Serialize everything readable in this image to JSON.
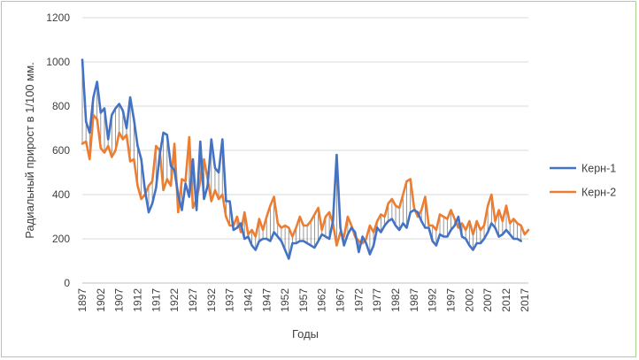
{
  "chart_data": {
    "type": "line",
    "title": "",
    "xlabel": "Годы",
    "ylabel": "Радиальный прирост в 1/100 мм.",
    "ylim": [
      0,
      1200
    ],
    "yticks": [
      0,
      200,
      400,
      600,
      800,
      1000,
      1200
    ],
    "xlim": [
      1897,
      2018
    ],
    "xticks": [
      1897,
      1902,
      1907,
      1912,
      1917,
      1922,
      1927,
      1932,
      1937,
      1942,
      1947,
      1952,
      1957,
      1962,
      1967,
      1972,
      1977,
      1982,
      1987,
      1992,
      1997,
      2002,
      2007,
      2012,
      2017
    ],
    "grid": "horizontal",
    "legend_position": "right",
    "drop_lines": true,
    "series": [
      {
        "name": "Керн-1",
        "color": "#4472c4",
        "x": [
          1897,
          1898,
          1899,
          1900,
          1901,
          1902,
          1903,
          1904,
          1905,
          1906,
          1907,
          1908,
          1909,
          1910,
          1911,
          1912,
          1913,
          1914,
          1915,
          1916,
          1917,
          1918,
          1919,
          1920,
          1921,
          1922,
          1923,
          1924,
          1925,
          1926,
          1927,
          1928,
          1929,
          1930,
          1931,
          1932,
          1933,
          1934,
          1935,
          1936,
          1937,
          1938,
          1939,
          1940,
          1941,
          1942,
          1943,
          1944,
          1945,
          1946,
          1947,
          1948,
          1949,
          1950,
          1951,
          1952,
          1953,
          1954,
          1955,
          1956,
          1957,
          1958,
          1959,
          1960,
          1961,
          1962,
          1963,
          1964,
          1965,
          1966,
          1967,
          1968,
          1969,
          1970,
          1971,
          1972,
          1973,
          1974,
          1975,
          1976,
          1977,
          1978,
          1979,
          1980,
          1981,
          1982,
          1983,
          1984,
          1985,
          1986,
          1987,
          1988,
          1989,
          1990,
          1991,
          1992,
          1993,
          1994,
          1995,
          1996,
          1997,
          1998,
          1999,
          2000,
          2001,
          2002,
          2003,
          2004,
          2005,
          2006,
          2007,
          2008,
          2009,
          2010,
          2011,
          2012,
          2013,
          2014,
          2015,
          2016
        ],
        "values": [
          1010,
          730,
          680,
          840,
          910,
          770,
          790,
          650,
          760,
          790,
          810,
          780,
          700,
          840,
          740,
          620,
          560,
          420,
          320,
          360,
          430,
          580,
          680,
          670,
          530,
          510,
          400,
          330,
          450,
          390,
          560,
          330,
          640,
          380,
          440,
          650,
          520,
          500,
          650,
          370,
          370,
          240,
          250,
          270,
          200,
          210,
          170,
          150,
          190,
          200,
          200,
          190,
          230,
          210,
          190,
          150,
          110,
          180,
          180,
          190,
          190,
          180,
          170,
          160,
          190,
          220,
          210,
          200,
          280,
          580,
          250,
          170,
          220,
          250,
          230,
          140,
          210,
          180,
          130,
          170,
          250,
          230,
          260,
          280,
          290,
          260,
          240,
          270,
          250,
          320,
          330,
          320,
          280,
          250,
          250,
          190,
          170,
          220,
          210,
          210,
          240,
          260,
          300,
          210,
          200,
          170,
          150,
          180,
          180,
          200,
          230,
          270,
          250,
          210,
          220,
          240,
          220,
          200,
          200,
          190
        ]
      },
      {
        "name": "Керн-2",
        "color": "#ed7d31",
        "x": [
          1897,
          1898,
          1899,
          1900,
          1901,
          1902,
          1903,
          1904,
          1905,
          1906,
          1907,
          1908,
          1909,
          1910,
          1911,
          1912,
          1913,
          1914,
          1915,
          1916,
          1917,
          1918,
          1919,
          1920,
          1921,
          1922,
          1923,
          1924,
          1925,
          1926,
          1927,
          1928,
          1929,
          1930,
          1931,
          1932,
          1933,
          1934,
          1935,
          1936,
          1937,
          1938,
          1939,
          1940,
          1941,
          1942,
          1943,
          1944,
          1945,
          1946,
          1947,
          1948,
          1949,
          1950,
          1951,
          1952,
          1953,
          1954,
          1955,
          1956,
          1957,
          1958,
          1959,
          1960,
          1961,
          1962,
          1963,
          1964,
          1965,
          1966,
          1967,
          1968,
          1969,
          1970,
          1971,
          1972,
          1973,
          1974,
          1975,
          1976,
          1977,
          1978,
          1979,
          1980,
          1981,
          1982,
          1983,
          1984,
          1985,
          1986,
          1987,
          1988,
          1989,
          1990,
          1991,
          1992,
          1993,
          1994,
          1995,
          1996,
          1997,
          1998,
          1999,
          2000,
          2001,
          2002,
          2003,
          2004,
          2005,
          2006,
          2007,
          2008,
          2009,
          2010,
          2011,
          2012,
          2013,
          2014,
          2015,
          2016,
          2017,
          2018
        ],
        "values": [
          630,
          640,
          560,
          760,
          740,
          610,
          590,
          620,
          570,
          600,
          680,
          650,
          670,
          550,
          560,
          440,
          380,
          400,
          440,
          460,
          620,
          600,
          420,
          470,
          440,
          630,
          320,
          470,
          460,
          660,
          340,
          380,
          460,
          560,
          470,
          370,
          420,
          380,
          400,
          300,
          260,
          260,
          300,
          230,
          320,
          220,
          240,
          210,
          290,
          240,
          300,
          350,
          390,
          270,
          250,
          260,
          250,
          210,
          250,
          300,
          260,
          260,
          280,
          310,
          340,
          240,
          300,
          320,
          270,
          170,
          230,
          210,
          300,
          260,
          210,
          190,
          180,
          200,
          260,
          230,
          280,
          310,
          300,
          360,
          380,
          350,
          340,
          400,
          460,
          470,
          340,
          300,
          330,
          390,
          260,
          260,
          240,
          310,
          300,
          290,
          330,
          290,
          250,
          270,
          240,
          280,
          220,
          280,
          240,
          260,
          350,
          400,
          280,
          330,
          280,
          350,
          270,
          290,
          270,
          260,
          220,
          240
        ]
      }
    ]
  }
}
